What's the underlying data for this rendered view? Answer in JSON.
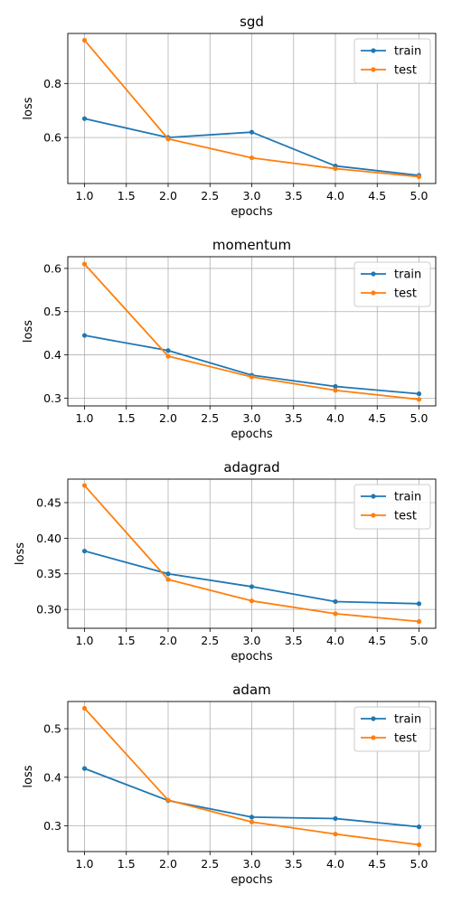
{
  "chart_data": [
    {
      "type": "line",
      "title": "sgd",
      "xlabel": "epochs",
      "ylabel": "loss",
      "x": [
        1,
        2,
        3,
        4,
        5
      ],
      "xlim": [
        0.8,
        5.2
      ],
      "ylim": [
        0.43,
        0.985
      ],
      "xticks": [
        1.0,
        1.5,
        2.0,
        2.5,
        3.0,
        3.5,
        4.0,
        4.5,
        5.0
      ],
      "yticks": [
        0.6,
        0.8
      ],
      "ytick_format": 1,
      "grid": true,
      "legend": "top-right",
      "series": [
        {
          "name": "train",
          "color": "#1f77b4",
          "values": [
            0.67,
            0.6,
            0.62,
            0.495,
            0.46
          ]
        },
        {
          "name": "test",
          "color": "#ff7f0e",
          "values": [
            0.96,
            0.595,
            0.525,
            0.485,
            0.455
          ]
        }
      ]
    },
    {
      "type": "line",
      "title": "momentum",
      "xlabel": "epochs",
      "ylabel": "loss",
      "x": [
        1,
        2,
        3,
        4,
        5
      ],
      "xlim": [
        0.8,
        5.2
      ],
      "ylim": [
        0.282,
        0.627
      ],
      "xticks": [
        1.0,
        1.5,
        2.0,
        2.5,
        3.0,
        3.5,
        4.0,
        4.5,
        5.0
      ],
      "yticks": [
        0.3,
        0.4,
        0.5,
        0.6
      ],
      "ytick_format": 1,
      "grid": true,
      "legend": "top-right",
      "series": [
        {
          "name": "train",
          "color": "#1f77b4",
          "values": [
            0.445,
            0.41,
            0.353,
            0.327,
            0.31
          ]
        },
        {
          "name": "test",
          "color": "#ff7f0e",
          "values": [
            0.61,
            0.397,
            0.349,
            0.318,
            0.297
          ]
        }
      ]
    },
    {
      "type": "line",
      "title": "adagrad",
      "xlabel": "epochs",
      "ylabel": "loss",
      "x": [
        1,
        2,
        3,
        4,
        5
      ],
      "xlim": [
        0.8,
        5.2
      ],
      "ylim": [
        0.2735,
        0.483
      ],
      "xticks": [
        1.0,
        1.5,
        2.0,
        2.5,
        3.0,
        3.5,
        4.0,
        4.5,
        5.0
      ],
      "yticks": [
        0.3,
        0.35,
        0.4,
        0.45
      ],
      "ytick_format": 2,
      "grid": true,
      "legend": "top-right",
      "series": [
        {
          "name": "train",
          "color": "#1f77b4",
          "values": [
            0.382,
            0.35,
            0.332,
            0.311,
            0.308
          ]
        },
        {
          "name": "test",
          "color": "#ff7f0e",
          "values": [
            0.474,
            0.342,
            0.312,
            0.294,
            0.283
          ]
        }
      ]
    },
    {
      "type": "line",
      "title": "adam",
      "xlabel": "epochs",
      "ylabel": "loss",
      "x": [
        1,
        2,
        3,
        4,
        5
      ],
      "xlim": [
        0.8,
        5.2
      ],
      "ylim": [
        0.247,
        0.556
      ],
      "xticks": [
        1.0,
        1.5,
        2.0,
        2.5,
        3.0,
        3.5,
        4.0,
        4.5,
        5.0
      ],
      "yticks": [
        0.3,
        0.4,
        0.5
      ],
      "ytick_format": 1,
      "grid": true,
      "legend": "top-right",
      "series": [
        {
          "name": "train",
          "color": "#1f77b4",
          "values": [
            0.418,
            0.352,
            0.318,
            0.315,
            0.298
          ]
        },
        {
          "name": "test",
          "color": "#ff7f0e",
          "values": [
            0.542,
            0.353,
            0.308,
            0.283,
            0.261
          ]
        }
      ]
    }
  ]
}
